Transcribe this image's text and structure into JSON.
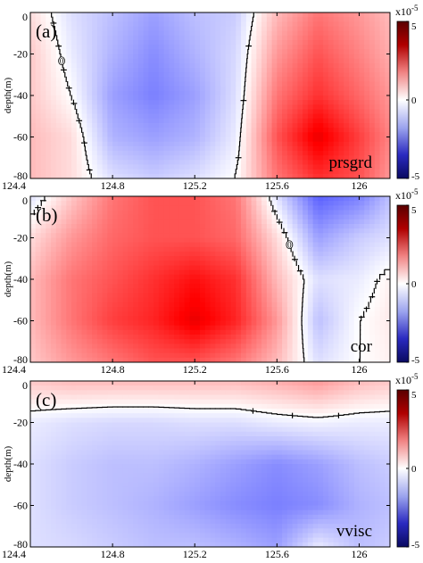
{
  "figure": {
    "colorbar": {
      "multiplier": "x10",
      "exponent": "-5",
      "min": -5,
      "max": 5,
      "tick_labels": [
        "5",
        "0",
        "-5"
      ],
      "colors": {
        "positive": "#cc0000",
        "negative": "#1a1a99",
        "zero": "#ffffff"
      }
    },
    "x_tick_labels": [
      "124.4",
      "124.8",
      "125.2",
      "125.6",
      "126"
    ],
    "y_tick_labels": [
      "0",
      "-20",
      "-40",
      "-60",
      "-80"
    ],
    "y_label": "depth(m)"
  },
  "chart_data": [
    {
      "type": "heatmap",
      "panel": "(a)",
      "variable": "prsgrd",
      "xlabel": "",
      "ylabel": "depth(m)",
      "xlim": [
        124.4,
        126.15
      ],
      "ylim": [
        -80,
        0
      ],
      "x": [
        124.4,
        124.6,
        124.8,
        125.0,
        125.2,
        125.4,
        125.6,
        125.8,
        126.0,
        126.15
      ],
      "y": [
        0,
        -20,
        -40,
        -60,
        -80
      ],
      "z": [
        [
          0.5,
          -0.5,
          -1.0,
          -1.5,
          -1.0,
          -0.8,
          1.0,
          2.0,
          1.5,
          1.0
        ],
        [
          0.8,
          -0.3,
          -1.2,
          -1.8,
          -1.2,
          -0.6,
          1.5,
          2.5,
          1.8,
          1.2
        ],
        [
          0.8,
          0.0,
          -1.5,
          -2.0,
          -1.5,
          -0.5,
          2.0,
          3.0,
          2.2,
          1.5
        ],
        [
          1.0,
          0.5,
          -1.2,
          -1.5,
          -1.2,
          -0.3,
          2.5,
          4.0,
          2.8,
          1.8
        ],
        [
          1.0,
          0.5,
          -0.5,
          -0.8,
          -0.5,
          0.0,
          2.0,
          3.0,
          2.5,
          1.5
        ]
      ],
      "contour_label": "0",
      "colorbar_range": [
        -5,
        5
      ],
      "colorbar_multiplier": "x10^-5"
    },
    {
      "type": "heatmap",
      "panel": "(b)",
      "variable": "cor",
      "xlabel": "",
      "ylabel": "depth(m)",
      "xlim": [
        124.4,
        126.15
      ],
      "ylim": [
        -80,
        0
      ],
      "x": [
        124.4,
        124.6,
        124.8,
        125.0,
        125.2,
        125.4,
        125.6,
        125.8,
        126.0,
        126.15
      ],
      "y": [
        0,
        -20,
        -40,
        -60,
        -80
      ],
      "z": [
        [
          -0.5,
          0.8,
          2.0,
          2.5,
          2.5,
          2.0,
          -0.5,
          -2.5,
          -2.0,
          -1.0
        ],
        [
          0.5,
          1.5,
          2.2,
          2.5,
          2.5,
          2.2,
          0.5,
          -1.5,
          -0.8,
          -0.5
        ],
        [
          1.0,
          2.0,
          2.5,
          3.0,
          3.5,
          3.0,
          1.0,
          -0.5,
          -0.3,
          0.2
        ],
        [
          1.0,
          2.0,
          2.8,
          3.2,
          4.0,
          3.2,
          1.5,
          -1.0,
          0.0,
          0.3
        ],
        [
          0.8,
          1.5,
          2.0,
          2.5,
          2.5,
          2.0,
          1.0,
          -0.5,
          0.0,
          0.2
        ]
      ],
      "contour_label": "0",
      "colorbar_range": [
        -5,
        5
      ],
      "colorbar_multiplier": "x10^-5"
    },
    {
      "type": "heatmap",
      "panel": "(c)",
      "variable": "vvisc",
      "xlabel": "",
      "ylabel": "depth(m)",
      "xlim": [
        124.4,
        126.15
      ],
      "ylim": [
        -80,
        0
      ],
      "x": [
        124.4,
        124.6,
        124.8,
        125.0,
        125.2,
        125.4,
        125.6,
        125.8,
        126.0,
        126.15
      ],
      "y": [
        0,
        -20,
        -40,
        -60,
        -80
      ],
      "z": [
        [
          0.8,
          1.0,
          1.0,
          1.0,
          1.0,
          1.0,
          1.2,
          1.5,
          1.0,
          0.8
        ],
        [
          -0.3,
          -0.5,
          -0.6,
          -0.6,
          -0.5,
          -0.5,
          -0.3,
          -0.2,
          -0.3,
          -0.3
        ],
        [
          -0.5,
          -0.8,
          -1.0,
          -1.0,
          -1.2,
          -1.5,
          -1.8,
          -1.5,
          -1.0,
          -0.8
        ],
        [
          -0.5,
          -0.8,
          -1.0,
          -1.2,
          -1.5,
          -1.8,
          -2.0,
          -1.8,
          -1.2,
          -1.0
        ],
        [
          -0.5,
          -0.6,
          -0.8,
          -1.0,
          -1.0,
          -1.2,
          -1.5,
          -0.3,
          -1.0,
          -0.8
        ]
      ],
      "contour_label": "0",
      "colorbar_range": [
        -5,
        5
      ],
      "colorbar_multiplier": "x10^-5"
    }
  ]
}
